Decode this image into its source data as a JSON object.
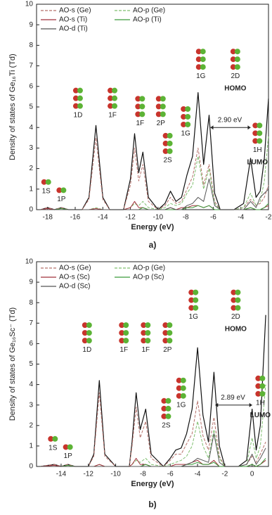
{
  "chart_data": [
    {
      "type": "line",
      "caption": "a)",
      "xlabel": "Energy (eV)",
      "ylabel": "Density of states of Ge₁₆Ti (Td)",
      "xlim": [
        -18.8,
        -2
      ],
      "ylim": [
        0,
        10
      ],
      "xticks": [
        -18,
        -16,
        -14,
        -12,
        -10,
        -8,
        -6,
        -4,
        -2
      ],
      "yticks": [
        0,
        1,
        2,
        3,
        4,
        5,
        6,
        7,
        8,
        9,
        10
      ],
      "x": [
        -18.5,
        -18,
        -17.5,
        -17,
        -16.5,
        -15.5,
        -15,
        -14.5,
        -14,
        -13.5,
        -12.5,
        -12,
        -11.7,
        -11.4,
        -11.1,
        -10.7,
        -10,
        -9.5,
        -9.1,
        -8.7,
        -8.3,
        -7.9,
        -7.5,
        -7.1,
        -6.7,
        -6.3,
        -5.9,
        -5.5,
        -4.5,
        -3.8,
        -3.3,
        -2.9,
        -2.6,
        -2.3,
        -2
      ],
      "series": [
        {
          "color": "#111111",
          "values": [
            0,
            0.1,
            0,
            0.1,
            0,
            0,
            0.6,
            4.1,
            0.6,
            0,
            0,
            1.5,
            3.7,
            1.8,
            2.8,
            0.6,
            0,
            0.3,
            0.9,
            0.4,
            0.6,
            1.7,
            2.6,
            5.7,
            2.2,
            4.6,
            0.8,
            0,
            0,
            0.3,
            2.5,
            0.6,
            0.9,
            2.5,
            5.4
          ]
        },
        {
          "name": "AO-s (Ge)",
          "color": "#b5706a",
          "dashed": true,
          "values": [
            0,
            0.1,
            0,
            0.1,
            0,
            0,
            0.5,
            3.5,
            0.5,
            0,
            0,
            1.2,
            3.0,
            1.4,
            2.2,
            0.4,
            0,
            0.2,
            0.6,
            0.3,
            0.4,
            1.0,
            1.6,
            3.0,
            1.2,
            2.2,
            0.4,
            0,
            0,
            0.1,
            0.5,
            0.2,
            0.3,
            0.6,
            1.2
          ]
        },
        {
          "name": "AO-p (Ge)",
          "color": "#7fbf6f",
          "dashed": true,
          "values": [
            0,
            0,
            0,
            0,
            0,
            0,
            0,
            0.1,
            0,
            0,
            0,
            0.1,
            0.3,
            0.2,
            0.4,
            0.1,
            0,
            0.1,
            0.3,
            0.2,
            0.3,
            0.8,
            1.2,
            2.6,
            1.0,
            2.0,
            0.3,
            0,
            0,
            0.1,
            0.8,
            0.2,
            0.4,
            1.4,
            3.6
          ]
        },
        {
          "name": "AO-s (Ti)",
          "color": "#a0303a",
          "values": [
            0,
            0.05,
            0,
            0,
            0,
            0,
            0,
            0.05,
            0,
            0,
            0,
            0.1,
            0.4,
            0.1,
            0.1,
            0,
            0,
            0,
            0.1,
            0,
            0.1,
            0.1,
            0.2,
            0.2,
            0.1,
            0.2,
            0,
            0,
            0,
            0,
            0.1,
            0,
            0,
            0.1,
            0.2
          ]
        },
        {
          "name": "AO-p (Ti)",
          "color": "#3a9a3a",
          "values": [
            0,
            0,
            0,
            0.05,
            0,
            0,
            0,
            0,
            0,
            0,
            0,
            0,
            0,
            0,
            0.1,
            0,
            0,
            0,
            0,
            0,
            0,
            0.1,
            0.1,
            0.2,
            0.1,
            0.2,
            0,
            0,
            0,
            0,
            0.1,
            0,
            0,
            0.1,
            0.3
          ]
        },
        {
          "name": "AO-d (Ti)",
          "color": "#555555",
          "values": [
            0,
            0,
            0,
            0,
            0,
            0,
            0,
            0,
            0,
            0,
            0,
            0,
            0,
            0,
            0,
            0,
            0,
            0,
            0.1,
            0,
            0,
            0.2,
            0.3,
            0.6,
            0.4,
            1.5,
            0.2,
            0,
            0,
            0,
            0.4,
            0.1,
            0.6,
            0.8,
            1.0
          ]
        }
      ],
      "annotations": [
        "1S",
        "1P",
        "1D",
        "1F",
        "1F",
        "2P",
        "2S",
        "1G",
        "1G",
        "2D",
        "HOMO",
        "1H",
        "LUMO",
        "2.90 eV"
      ]
    },
    {
      "type": "line",
      "caption": "b)",
      "xlabel": "Energy (eV)",
      "ylabel": "Density of states of Ge₁₆Sc⁻ (Td)",
      "xlim": [
        -15.8,
        1.2
      ],
      "ylim": [
        0,
        10
      ],
      "xticks": [
        -14,
        -12,
        -10,
        -8,
        -6,
        -4,
        -2,
        0
      ],
      "yticks": [
        0,
        1,
        2,
        3,
        4,
        5,
        6,
        7,
        8,
        9,
        10
      ],
      "x": [
        -15.5,
        -14.5,
        -14,
        -13.5,
        -13,
        -12,
        -11.6,
        -11.2,
        -10.8,
        -10,
        -9,
        -8.8,
        -8.5,
        -8.2,
        -7.8,
        -7.4,
        -6.5,
        -6,
        -5.6,
        -5.2,
        -4.8,
        -4.4,
        -4,
        -3.6,
        -3.2,
        -2.8,
        -2.4,
        -2,
        -1,
        -0.4,
        0,
        0.3,
        0.6,
        1
      ],
      "series": [
        {
          "color": "#111111",
          "values": [
            0,
            0.1,
            0,
            0.1,
            0,
            0,
            0.6,
            4.2,
            0.6,
            0,
            0,
            1.2,
            3.6,
            1.8,
            2.8,
            0.6,
            0,
            0.4,
            0.8,
            0.9,
            1.6,
            2.8,
            5.8,
            2.5,
            1.2,
            4.6,
            1.0,
            0,
            0,
            0.3,
            2.8,
            0.8,
            2.0,
            7.4
          ]
        },
        {
          "name": "AO-s (Ge)",
          "color": "#b5706a",
          "dashed": true,
          "values": [
            0,
            0.1,
            0,
            0.1,
            0,
            0,
            0.5,
            3.6,
            0.5,
            0,
            0,
            1.0,
            2.9,
            1.4,
            2.2,
            0.4,
            0,
            0.3,
            0.6,
            0.6,
            1.1,
            1.6,
            3.2,
            1.5,
            0.8,
            2.4,
            0.5,
            0,
            0,
            0.1,
            0.5,
            0.2,
            0.6,
            1.2
          ]
        },
        {
          "name": "AO-p (Ge)",
          "color": "#7fbf6f",
          "dashed": true,
          "values": [
            0,
            0,
            0,
            0,
            0,
            0,
            0,
            0.1,
            0,
            0,
            0,
            0.1,
            0.3,
            0.2,
            0.4,
            0.1,
            0,
            0.1,
            0.2,
            0.3,
            0.5,
            1.0,
            2.2,
            1.0,
            0.4,
            1.8,
            0.4,
            0,
            0,
            0.1,
            1.4,
            0.4,
            1.0,
            4.0
          ]
        },
        {
          "name": "AO-s (Sc)",
          "color": "#a0303a",
          "values": [
            0,
            0.05,
            0,
            0,
            0,
            0,
            0,
            0.1,
            0,
            0,
            0,
            0.1,
            0.4,
            0.1,
            0.1,
            0,
            0,
            0,
            0.1,
            0.1,
            0.1,
            0.2,
            0.3,
            0.1,
            0.1,
            0.3,
            0,
            0,
            0,
            0,
            0.1,
            0,
            0.1,
            0.3
          ]
        },
        {
          "name": "AO-p (Sc)",
          "color": "#3a9a3a",
          "values": [
            0,
            0,
            0,
            0.05,
            0,
            0,
            0,
            0,
            0,
            0,
            0,
            0,
            0,
            0,
            0.1,
            0,
            0,
            0,
            0,
            0,
            0.1,
            0.1,
            0.2,
            0.1,
            0.1,
            0.2,
            0,
            0,
            0,
            0,
            0.1,
            0,
            0.1,
            0.4
          ]
        },
        {
          "name": "AO-d (Sc)",
          "color": "#555555",
          "values": [
            0,
            0,
            0,
            0,
            0,
            0,
            0,
            0,
            0,
            0,
            0,
            0,
            0,
            0,
            0,
            0,
            0,
            0,
            0,
            0,
            0.1,
            0.2,
            0.4,
            0.3,
            0.2,
            1.6,
            0.2,
            0,
            0,
            0.1,
            0.6,
            0.1,
            0.4,
            0.9
          ]
        }
      ],
      "annotations": [
        "1S",
        "1P",
        "1D",
        "1F",
        "1F",
        "2P",
        "2S",
        "1G",
        "1G",
        "2D",
        "HOMO",
        "1H",
        "LUMO",
        "2.89 eV"
      ]
    }
  ]
}
